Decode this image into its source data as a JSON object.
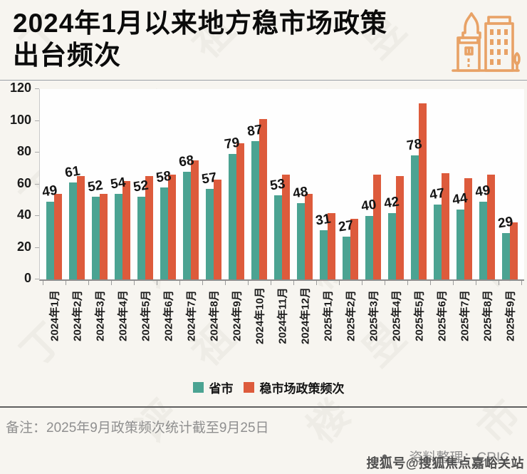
{
  "header": {
    "title_line1": "2024年1月以来地方稳市场政策",
    "title_line2": "出台频次"
  },
  "chart_data": {
    "type": "bar",
    "title": "2024年1月以来地方稳市场政策出台频次",
    "categories": [
      "2024年1月",
      "2024年2月",
      "2024年3月",
      "2024年4月",
      "2024年5月",
      "2024年6月",
      "2024年7月",
      "2024年8月",
      "2024年9月",
      "2024年10月",
      "2024年11月",
      "2024年12月",
      "2025年1月",
      "2025年2月",
      "2025年3月",
      "2025年4月",
      "2025年5月",
      "2025年6月",
      "2025年7月",
      "2025年8月",
      "2025年9月"
    ],
    "series": [
      {
        "name": "省市",
        "color": "#4BA392",
        "values": [
          49,
          61,
          52,
          54,
          52,
          58,
          68,
          57,
          79,
          87,
          53,
          48,
          31,
          27,
          40,
          42,
          78,
          47,
          44,
          49,
          29
        ],
        "data_labels": true
      },
      {
        "name": "稳市场政策频次",
        "color": "#DD5B3C",
        "values": [
          54,
          65,
          54,
          62,
          65,
          66,
          75,
          63,
          86,
          101,
          66,
          54,
          42,
          38,
          66,
          65,
          111,
          67,
          64,
          66,
          36
        ],
        "data_labels": false
      }
    ],
    "xlabel": "",
    "ylabel": "",
    "ylim": [
      0,
      120
    ],
    "yticks": [
      0,
      20,
      40,
      60,
      80,
      100,
      120
    ],
    "grid": false,
    "legend_position": "bottom"
  },
  "footer": {
    "note": "备注：2025年9月政策频次统计截至9月25日",
    "bullet": "●",
    "source": "资料整理：CRIC",
    "sohu_watermark": "搜狐号@搜狐焦点嘉峪关站"
  },
  "icon": {
    "buildings_color": "#E8A266"
  },
  "watermark": {
    "chars": [
      "丁",
      "祖",
      "昱",
      "评",
      "楼",
      "市"
    ]
  }
}
